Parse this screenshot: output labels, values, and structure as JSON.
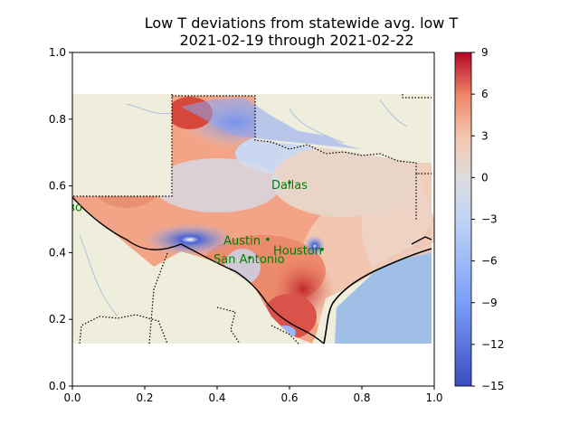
{
  "chart_data": {
    "type": "heatmap",
    "title": "Low T deviations from statewide avg. low T",
    "subtitle": "2021-02-19 through 2021-02-22",
    "xlabel": "",
    "ylabel": "",
    "xlim": [
      0.0,
      1.0
    ],
    "ylim": [
      0.0,
      1.0
    ],
    "x_ticks": [
      "0.0",
      "0.2",
      "0.4",
      "0.6",
      "0.8",
      "1.0"
    ],
    "y_ticks": [
      "0.0",
      "0.2",
      "0.4",
      "0.6",
      "0.8",
      "1.0"
    ],
    "colorbar": {
      "min": -15,
      "max": 9,
      "ticks": [
        "9",
        "6",
        "3",
        "0",
        "−3",
        "−6",
        "−9",
        "−12",
        "−15"
      ],
      "colormap": "coolwarm",
      "low_color": "#3b4cc0",
      "mid_color": "#dddddd",
      "high_color": "#b40426"
    },
    "map": {
      "land_color": "#efeedd",
      "water_color": "#9fbfe6",
      "border_style": "dotted",
      "coast_color": "#000000"
    },
    "cities": [
      {
        "name": "Dallas",
        "x": 0.6,
        "y": 0.61
      },
      {
        "name": "El Paso",
        "x": 0.0,
        "y": 0.54
      },
      {
        "name": "Austin",
        "x": 0.54,
        "y": 0.44
      },
      {
        "name": "Houston",
        "x": 0.69,
        "y": 0.41
      },
      {
        "name": "San Antonio",
        "x": 0.49,
        "y": 0.385
      }
    ],
    "city_label_color": "#008000"
  }
}
